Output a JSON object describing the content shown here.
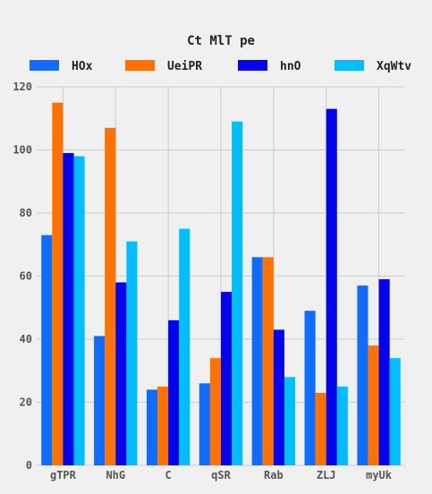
{
  "chart_data": {
    "type": "bar",
    "title": "Ct MlT pe",
    "xlabel": "",
    "ylabel": "",
    "categories": [
      "gTPR",
      "NhG",
      "C",
      "qSR",
      "Rab",
      "ZLJ",
      "myUk"
    ],
    "ylim": [
      0,
      120
    ],
    "yticks": [
      0,
      20,
      40,
      60,
      80,
      100,
      120
    ],
    "grid": true,
    "legend_position": "top",
    "series": [
      {
        "name": "HOx",
        "color": "#0e6cff",
        "values": [
          73,
          41,
          24,
          26,
          66,
          49,
          57
        ]
      },
      {
        "name": "UeiPR",
        "color": "#ff7200",
        "values": [
          115,
          107,
          25,
          34,
          66,
          23,
          38
        ]
      },
      {
        "name": "hnO",
        "color": "#0303ee",
        "values": [
          99,
          58,
          46,
          55,
          43,
          113,
          59
        ]
      },
      {
        "name": "XqWtv",
        "color": "#00beff",
        "values": [
          98,
          71,
          75,
          109,
          28,
          25,
          34
        ]
      }
    ]
  }
}
